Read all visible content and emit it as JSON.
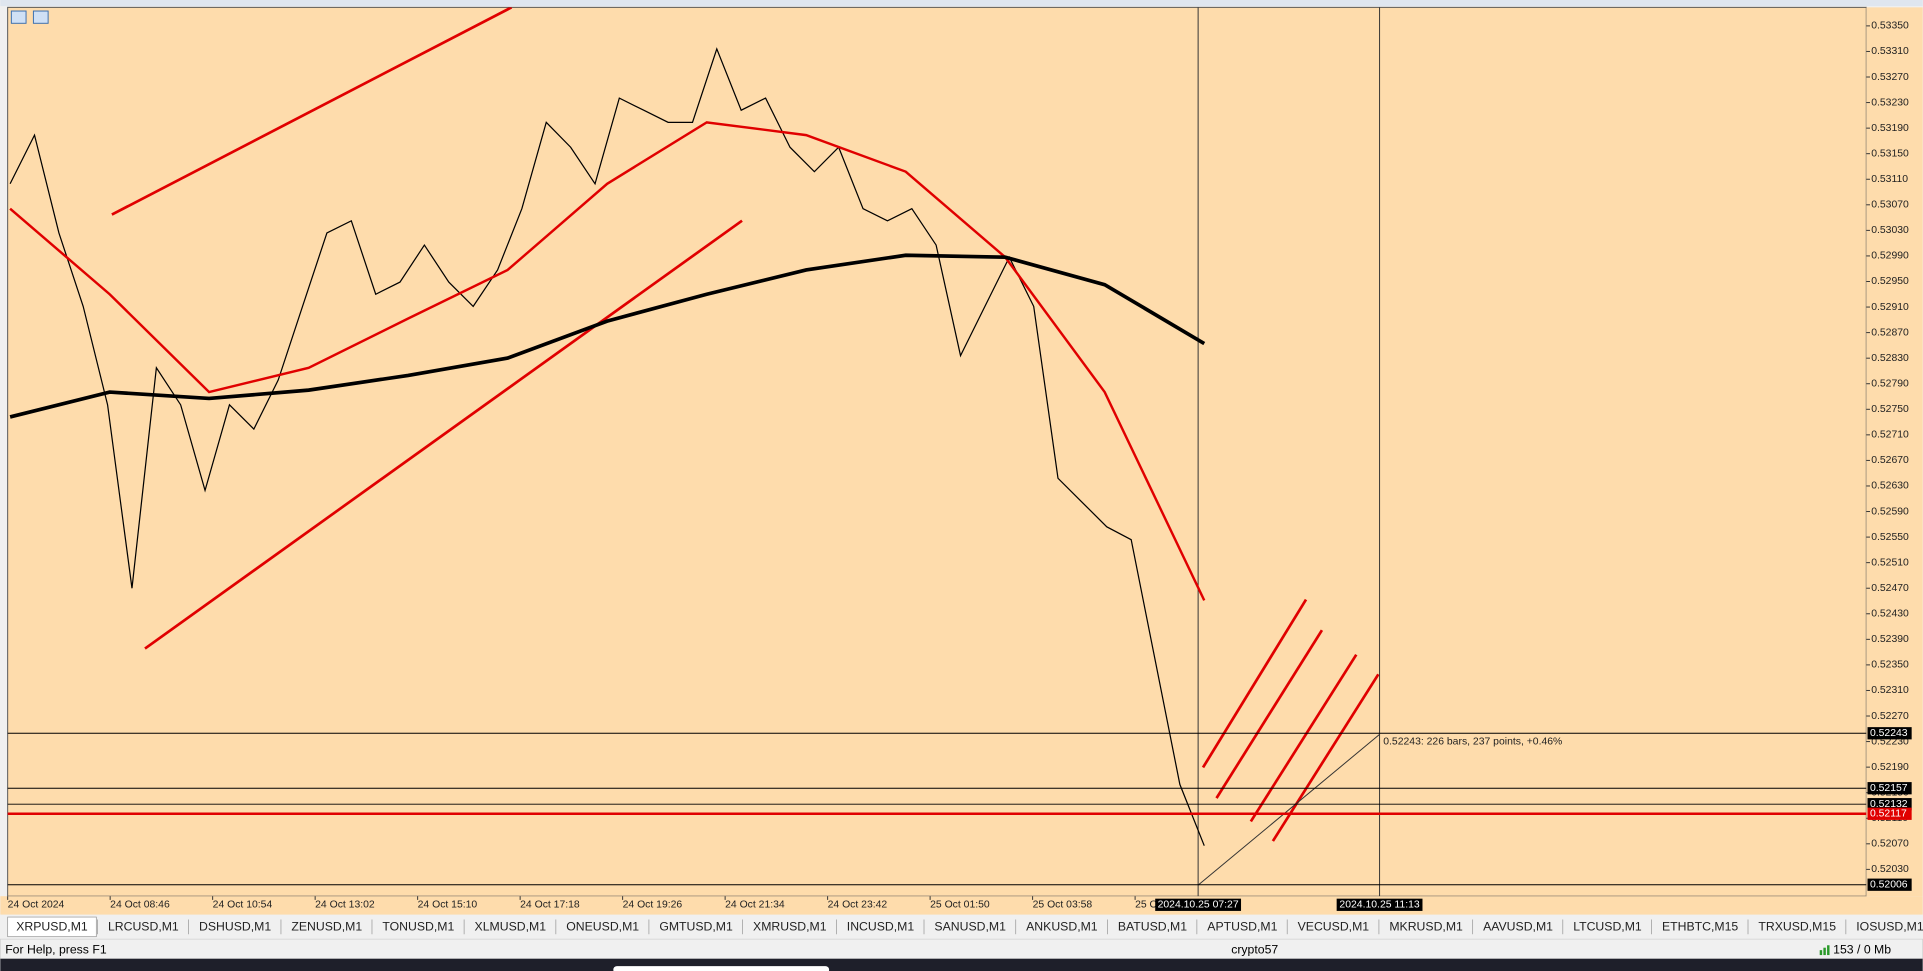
{
  "chart_data": {
    "type": "line",
    "series": [
      {
        "color": "#000000",
        "width": 1,
        "values": [
          0.53103,
          0.53179,
          0.53026,
          0.52911,
          0.52757,
          0.5247,
          0.52815,
          0.52757,
          0.52623,
          0.52757,
          0.52719,
          0.52796,
          0.52911,
          0.53026,
          0.53045,
          0.5293,
          0.52949,
          0.53007,
          0.52949,
          0.52911,
          0.52968,
          0.53064,
          0.53199,
          0.5316,
          0.53103,
          0.53237,
          0.53218,
          0.53199,
          0.53199,
          0.53314,
          0.53218,
          0.53237,
          0.5316,
          0.53122,
          0.5316,
          0.53064,
          0.53045,
          0.53064,
          0.53007,
          0.52834,
          0.52911,
          0.52988,
          0.52911,
          0.52642,
          0.52604,
          0.52566,
          0.52546,
          0.52355,
          0.52163,
          0.52067
        ]
      },
      {
        "color": "#e00000",
        "width": 2,
        "values": [
          0.53064,
          0.5293,
          0.52777,
          0.52815,
          0.52892,
          0.52968,
          0.53103,
          0.53199,
          0.53179,
          0.53122,
          0.52988,
          0.52777,
          0.52451
        ]
      },
      {
        "color": "#000000",
        "width": 3,
        "values": [
          0.52738,
          0.52777,
          0.52767,
          0.5278,
          0.52803,
          0.5283,
          0.52888,
          0.5293,
          0.52968,
          0.52991,
          0.52988,
          0.52945,
          0.52853
        ]
      }
    ],
    "ylim": [
      0.51988,
      0.53379
    ],
    "yticks": [
      {
        "value": 0.5335,
        "label": "0.53350"
      },
      {
        "value": 0.5331,
        "label": "0.53310"
      },
      {
        "value": 0.5327,
        "label": "0.53270"
      },
      {
        "value": 0.5323,
        "label": "0.53230"
      },
      {
        "value": 0.5319,
        "label": "0.53190"
      },
      {
        "value": 0.5315,
        "label": "0.53150"
      },
      {
        "value": 0.5311,
        "label": "0.53110"
      },
      {
        "value": 0.5307,
        "label": "0.53070"
      },
      {
        "value": 0.5303,
        "label": "0.53030"
      },
      {
        "value": 0.5299,
        "label": "0.52990"
      },
      {
        "value": 0.5295,
        "label": "0.52950"
      },
      {
        "value": 0.5291,
        "label": "0.52910"
      },
      {
        "value": 0.5287,
        "label": "0.52870"
      },
      {
        "value": 0.5283,
        "label": "0.52830"
      },
      {
        "value": 0.5279,
        "label": "0.52790"
      },
      {
        "value": 0.5275,
        "label": "0.52750"
      },
      {
        "value": 0.5271,
        "label": "0.52710"
      },
      {
        "value": 0.5267,
        "label": "0.52670"
      },
      {
        "value": 0.5263,
        "label": "0.52630"
      },
      {
        "value": 0.5259,
        "label": "0.52590"
      },
      {
        "value": 0.5255,
        "label": "0.52550"
      },
      {
        "value": 0.5251,
        "label": "0.52510"
      },
      {
        "value": 0.5247,
        "label": "0.52470"
      },
      {
        "value": 0.5243,
        "label": "0.52430"
      },
      {
        "value": 0.5239,
        "label": "0.52390"
      },
      {
        "value": 0.5235,
        "label": "0.52350"
      },
      {
        "value": 0.5231,
        "label": "0.52310"
      },
      {
        "value": 0.5227,
        "label": "0.52270"
      },
      {
        "value": 0.5223,
        "label": "0.52230"
      },
      {
        "value": 0.5219,
        "label": "0.52190"
      },
      {
        "value": 0.5215,
        "label": "0.52150"
      },
      {
        "value": 0.5211,
        "label": "0.52110"
      },
      {
        "value": 0.5207,
        "label": "0.52070"
      },
      {
        "value": 0.5203,
        "label": "0.52030"
      }
    ],
    "levels": [
      {
        "value": 0.52243,
        "color": "#000000"
      },
      {
        "value": 0.52157,
        "color": "#000000"
      },
      {
        "value": 0.52132,
        "color": "#000000"
      },
      {
        "value": 0.52117,
        "color": "#e00000"
      },
      {
        "value": 0.52006,
        "color": "#000000"
      }
    ],
    "x_labels": [
      "24 Oct 2024",
      "24 Oct 08:46",
      "24 Oct 10:54",
      "24 Oct 13:02",
      "24 Oct 15:10",
      "24 Oct 17:18",
      "24 Oct 19:26",
      "24 Oct 21:34",
      "24 Oct 23:42",
      "25 Oct 01:50",
      "25 Oct 03:58",
      "25 O"
    ],
    "crosshair_labels": [
      "2024.10.25 07:27",
      "2024.10.25 11:13"
    ],
    "annotation": "0.52243: 226 bars, 237 points, +0.46%"
  },
  "tabs": [
    "XRPUSD,M1",
    "LRCUSD,M1",
    "DSHUSD,M1",
    "ZENUSD,M1",
    "TONUSD,M1",
    "XLMUSD,M1",
    "ONEUSD,M1",
    "GMTUSD,M1",
    "XMRUSD,M1",
    "INCUSD,M1",
    "SANUSD,M1",
    "ANKUSD,M1",
    "BATUSD,M1",
    "APTUSD,M1",
    "VECUSD,M1",
    "MKRUSD,M1",
    "AAVUSD,M1",
    "LTCUSD,M1",
    "ETHBTC,M15",
    "TRXUSD,M15",
    "IOSUSD,M1"
  ],
  "status": {
    "help": "For Help, press F1",
    "profile": "crypto57",
    "memory": "153 / 0 Mb"
  }
}
